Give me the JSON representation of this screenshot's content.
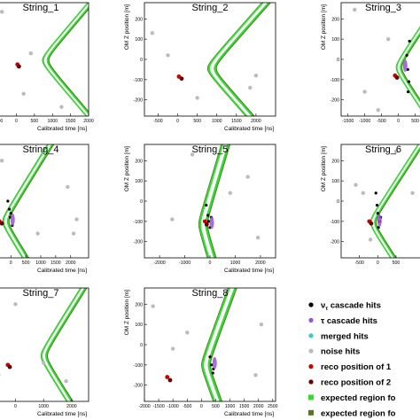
{
  "chart_data": {
    "type": "scatter",
    "panels": [
      {
        "title": "String_1",
        "xlabel": "Calibrated time [ns]",
        "ylabel": "",
        "xlim": [
          -650,
          2000
        ],
        "ylim": [
          -280,
          280
        ],
        "xticks": [
          "-500",
          "0",
          "500",
          "1000",
          "1500",
          "2000"
        ],
        "yticks": [],
        "band": {
          "x0": 950,
          "y0": -5,
          "k": 4.8
        },
        "noise": [
          [
            -400,
            235
          ],
          [
            400,
            30
          ],
          [
            -550,
            -150
          ],
          [
            200,
            -170
          ],
          [
            1250,
            -235
          ],
          [
            -520,
            110
          ]
        ],
        "reco": [
          [
            30,
            -25
          ],
          [
            70,
            -35
          ]
        ],
        "cascade": []
      },
      {
        "title": "String_2",
        "xlabel": "Calibrated time [ns]",
        "ylabel": "OM Z position [m]",
        "xlim": [
          -850,
          2500
        ],
        "ylim": [
          -280,
          280
        ],
        "xticks": [
          "-500",
          "0",
          "500",
          "1000",
          "1500",
          "2000"
        ],
        "yticks": [
          "-200",
          "-100",
          "0",
          "100",
          "200"
        ],
        "band": {
          "x0": 1050,
          "y0": -45,
          "k": 4.6
        },
        "noise": [
          [
            -650,
            130
          ],
          [
            -250,
            20
          ],
          [
            500,
            -190
          ],
          [
            2000,
            -80
          ],
          [
            1850,
            -140
          ]
        ],
        "reco": [
          [
            30,
            -85
          ],
          [
            100,
            -95
          ]
        ],
        "cascade": []
      },
      {
        "title": "String_3",
        "xlabel": "",
        "ylabel": "OM Z position [m]",
        "xlim": [
          -1700,
          800
        ],
        "ylim": [
          -280,
          280
        ],
        "xticks": [
          "-1500",
          "-1000",
          "-500",
          "0",
          "500"
        ],
        "yticks": [
          "-200",
          "-100",
          "0",
          "100",
          "200"
        ],
        "band": {
          "x0": 150,
          "y0": -40,
          "k": 4.0
        },
        "noise": [
          [
            -1300,
            245
          ],
          [
            -1000,
            -160
          ],
          [
            -300,
            100
          ],
          [
            -600,
            -250
          ]
        ],
        "reco": [
          [
            -100,
            -80
          ],
          [
            -40,
            -90
          ]
        ],
        "cascade": [
          [
            250,
            20
          ],
          [
            280,
            -50
          ],
          [
            310,
            -110
          ],
          [
            330,
            90
          ],
          [
            290,
            -160
          ]
        ]
      },
      {
        "title": "String_4",
        "xlabel": "Calibrated time [ns]",
        "ylabel": "",
        "xlim": [
          -600,
          2600
        ],
        "ylim": [
          -280,
          280
        ],
        "xticks": [
          "0",
          "500",
          "1000",
          "1500",
          "2000"
        ],
        "yticks": [],
        "band": {
          "x0": 0,
          "y0": -100,
          "k": 4.2
        },
        "noise": [
          [
            -300,
            200
          ],
          [
            1900,
            70
          ],
          [
            2200,
            -90
          ],
          [
            900,
            -160
          ],
          [
            2100,
            -160
          ],
          [
            -450,
            -150
          ]
        ],
        "reco": [
          [
            -380,
            -100
          ],
          [
            -300,
            -110
          ]
        ],
        "cascade": [
          [
            -100,
            0
          ],
          [
            -50,
            -40
          ],
          [
            -20,
            -80
          ],
          [
            50,
            -120
          ],
          [
            0,
            -60
          ]
        ]
      },
      {
        "title": "String_5",
        "xlabel": "Calibrated time [ns]",
        "ylabel": "OM Z position [m]",
        "xlim": [
          -2600,
          2600
        ],
        "ylim": [
          -280,
          280
        ],
        "xticks": [
          "-2000",
          "-1000",
          "0",
          "1000",
          "2000"
        ],
        "yticks": [
          "-200",
          "-100",
          "0",
          "100",
          "200"
        ],
        "band": {
          "x0": 0,
          "y0": -115,
          "k": 2.4
        },
        "noise": [
          [
            -700,
            230
          ],
          [
            1500,
            120
          ],
          [
            -1500,
            -90
          ],
          [
            1900,
            -180
          ],
          [
            800,
            40
          ]
        ],
        "reco": [
          [
            -200,
            -100
          ],
          [
            -130,
            -115
          ]
        ],
        "cascade": [
          [
            -150,
            -20
          ],
          [
            -80,
            -70
          ],
          [
            -50,
            -100
          ],
          [
            0,
            -130
          ],
          [
            50,
            -80
          ]
        ]
      },
      {
        "title": "String_6",
        "xlabel": "",
        "ylabel": "OM Z position [m]",
        "xlim": [
          -1000,
          1300
        ],
        "ylim": [
          -280,
          280
        ],
        "xticks": [
          "-500",
          "0",
          "500"
        ],
        "yticks": [
          "-200",
          "-100",
          "0",
          "100",
          "200"
        ],
        "band": {
          "x0": 0,
          "y0": -105,
          "k": 3.6
        },
        "noise": [
          [
            -600,
            80
          ],
          [
            -400,
            40
          ],
          [
            -200,
            -190
          ],
          [
            500,
            245
          ],
          [
            950,
            40
          ]
        ],
        "reco": [
          [
            -230,
            -100
          ],
          [
            -180,
            -110
          ]
        ],
        "cascade": [
          [
            -50,
            40
          ],
          [
            -20,
            -20
          ],
          [
            0,
            -60
          ],
          [
            50,
            -100
          ],
          [
            20,
            -130
          ],
          [
            80,
            -80
          ]
        ]
      },
      {
        "title": "String_7",
        "xlabel": "Calibrated time [ns]",
        "ylabel": "",
        "xlim": [
          -800,
          2600
        ],
        "ylim": [
          -280,
          280
        ],
        "xticks": [
          "0",
          "1000",
          "2000"
        ],
        "yticks": [],
        "band": {
          "x0": 1200,
          "y0": -55,
          "k": 4.5
        },
        "noise": [
          [
            0,
            200
          ],
          [
            1000,
            -90
          ],
          [
            1800,
            -180
          ],
          [
            -600,
            -150
          ]
        ],
        "reco": [
          [
            -270,
            -100
          ],
          [
            -200,
            -110
          ]
        ],
        "cascade": []
      },
      {
        "title": "String_8",
        "xlabel": "Calibrated time [ns]",
        "ylabel": "OM Z position [m]",
        "xlim": [
          -2000,
          2600
        ],
        "ylim": [
          -280,
          280
        ],
        "xticks": [
          "-2000",
          "-1500",
          "-1000",
          "-500",
          "0",
          "500",
          "1000",
          "1500",
          "2000",
          "2500"
        ],
        "yticks": [
          "-200",
          "-100",
          "0",
          "100",
          "200"
        ],
        "band": {
          "x0": 400,
          "y0": -100,
          "k": 2.6
        },
        "noise": [
          [
            -1700,
            190
          ],
          [
            -1000,
            -20
          ],
          [
            -500,
            60
          ],
          [
            1900,
            -150
          ],
          [
            2100,
            100
          ]
        ],
        "reco": [
          [
            -1200,
            -160
          ],
          [
            -1100,
            -175
          ]
        ],
        "cascade": [
          [
            300,
            -60
          ],
          [
            350,
            -100
          ],
          [
            400,
            -140
          ],
          [
            420,
            -120
          ]
        ]
      }
    ],
    "legend": [
      {
        "label": "ν cascade hits",
        "color": "#000000",
        "marker": "dot"
      },
      {
        "label": "τ cascade hits",
        "color": "#9955cc",
        "marker": "dot"
      },
      {
        "label": "merged hits",
        "color": "#33cccc",
        "marker": "dot"
      },
      {
        "label": "noise hits",
        "color": "#bbbbbb",
        "marker": "dot"
      },
      {
        "label": "reco position of 1",
        "color": "#cc0000",
        "marker": "dot"
      },
      {
        "label": "reco position of 2",
        "color": "#660000",
        "marker": "dot"
      },
      {
        "label": "expected region fo",
        "color": "#33dd33",
        "marker": "square"
      },
      {
        "label": "expected region fo",
        "color": "#557722",
        "marker": "square"
      }
    ],
    "legend_nu_subscript": "τ",
    "colors": {
      "cascade": "#000000",
      "tau_cascade": "#9955cc",
      "noise": "#bbbbbb",
      "reco1": "#cc0000",
      "reco2": "#660000",
      "band_green": "#33dd33",
      "band_olive": "#557722",
      "band_inner": "#ffffff"
    }
  }
}
